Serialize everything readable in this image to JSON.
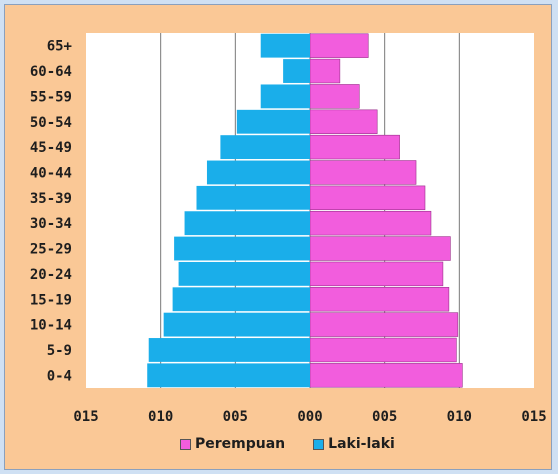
{
  "chart_data": {
    "type": "bar",
    "orientation": "horizontal-population-pyramid",
    "categories": [
      "0-4",
      "5-9",
      "10-14",
      "15-19",
      "20-24",
      "25-29",
      "30-34",
      "35-39",
      "40-44",
      "45-49",
      "50-54",
      "55-59",
      "60-64",
      "65+"
    ],
    "series": [
      {
        "name": "Perempuan",
        "side": "right",
        "color": "#f25ddd",
        "values": [
          10.2,
          9.8,
          9.9,
          9.3,
          8.9,
          9.4,
          8.1,
          7.7,
          7.1,
          6.0,
          4.5,
          3.3,
          2.0,
          3.9
        ]
      },
      {
        "name": "Laki-laki",
        "side": "left",
        "color": "#1aaeea",
        "values": [
          10.9,
          10.8,
          9.8,
          9.2,
          8.8,
          9.1,
          8.4,
          7.6,
          6.9,
          6.0,
          4.9,
          3.3,
          1.8,
          3.3
        ]
      }
    ],
    "xlim": [
      -15,
      15
    ],
    "x_ticks": [
      -15,
      -10,
      -5,
      0,
      5,
      10,
      15
    ],
    "x_tick_labels": [
      "015",
      "010",
      "005",
      "000",
      "005",
      "010",
      "015"
    ],
    "grid": "vertical",
    "legend_position": "bottom"
  }
}
